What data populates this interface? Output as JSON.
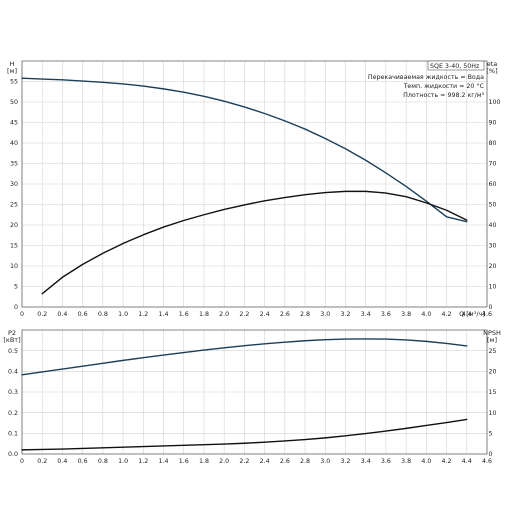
{
  "info": {
    "model": "SQE 3-40, 50Hz",
    "lines": [
      "Перекачиваемая жидкость = Вода",
      "Темп. жидкости = 20 °C",
      "Плотность = 998.2 кг/м³"
    ]
  },
  "chart_data": [
    {
      "type": "line",
      "name": "top",
      "xlabel": "Q [м³/ч]",
      "ylabel": "H [м]",
      "y2label": "eta [%]",
      "xlim": [
        0,
        4.6
      ],
      "ylim": [
        0,
        60
      ],
      "y2lim": [
        0,
        120
      ],
      "x_ticks": [
        "0",
        "0.2",
        "0.4",
        "0.6",
        "0.8",
        "1.0",
        "1.2",
        "1.4",
        "1.6",
        "1.8",
        "2.0",
        "2.2",
        "2.4",
        "2.6",
        "2.8",
        "3.0",
        "3.2",
        "3.4",
        "3.6",
        "3.8",
        "4.0",
        "4.2",
        "4.4",
        "4.6"
      ],
      "y_ticks": [
        0,
        5,
        10,
        15,
        20,
        25,
        30,
        35,
        40,
        45,
        50,
        55
      ],
      "y2_ticks": [
        0,
        10,
        20,
        30,
        40,
        50,
        60,
        70,
        80,
        90,
        100
      ],
      "grid": true,
      "series": [
        {
          "axis": "left",
          "color": "#1b3f5a",
          "x": [
            0.0,
            0.2,
            0.4,
            0.6,
            0.8,
            1.0,
            1.2,
            1.4,
            1.6,
            1.8,
            2.0,
            2.2,
            2.4,
            2.6,
            2.8,
            3.0,
            3.2,
            3.4,
            3.6,
            3.8,
            4.0,
            4.2,
            4.4
          ],
          "values": [
            55.8,
            55.6,
            55.4,
            55.1,
            54.8,
            54.4,
            53.9,
            53.2,
            52.4,
            51.4,
            50.2,
            48.8,
            47.2,
            45.4,
            43.4,
            41.1,
            38.6,
            35.8,
            32.7,
            29.4,
            25.8,
            22.0,
            20.8
          ]
        },
        {
          "axis": "right",
          "color": "#111111",
          "x": [
            0.2,
            0.4,
            0.6,
            0.8,
            1.0,
            1.2,
            1.4,
            1.6,
            1.8,
            2.0,
            2.2,
            2.4,
            2.6,
            2.8,
            3.0,
            3.2,
            3.4,
            3.6,
            3.8,
            4.0,
            4.2,
            4.4
          ],
          "values": [
            6.5,
            14.5,
            20.8,
            26.2,
            31.0,
            35.2,
            39.0,
            42.2,
            45.0,
            47.6,
            49.8,
            51.8,
            53.4,
            54.8,
            55.8,
            56.4,
            56.4,
            55.6,
            53.8,
            50.8,
            47.2,
            42.4
          ]
        }
      ]
    },
    {
      "type": "line",
      "name": "bottom",
      "ylabel": "P2 [кВт]",
      "y2label": "NPSH [м]",
      "xlim": [
        0,
        4.6
      ],
      "ylim": [
        0,
        0.6
      ],
      "y2lim": [
        0,
        30
      ],
      "x_ticks": [
        "0",
        "0.2",
        "0.4",
        "0.6",
        "0.8",
        "1.0",
        "1.2",
        "1.4",
        "1.6",
        "1.8",
        "2.0",
        "2.2",
        "2.4",
        "2.6",
        "2.8",
        "3.0",
        "3.2",
        "3.4",
        "3.6",
        "3.8",
        "4.0",
        "4.2",
        "4.4",
        "4.6"
      ],
      "y_ticks": [
        "0.0",
        "0.1",
        "0.2",
        "0.3",
        "0.4",
        "0.5"
      ],
      "y2_ticks": [
        0,
        5,
        10,
        15,
        20,
        25
      ],
      "grid": true,
      "series": [
        {
          "axis": "left",
          "color": "#1b3f5a",
          "x": [
            0.0,
            0.2,
            0.4,
            0.6,
            0.8,
            1.0,
            1.2,
            1.4,
            1.6,
            1.8,
            2.0,
            2.2,
            2.4,
            2.6,
            2.8,
            3.0,
            3.2,
            3.4,
            3.6,
            3.8,
            4.0,
            4.2,
            4.4
          ],
          "values": [
            0.383,
            0.397,
            0.411,
            0.425,
            0.439,
            0.453,
            0.466,
            0.479,
            0.491,
            0.503,
            0.514,
            0.524,
            0.533,
            0.541,
            0.548,
            0.553,
            0.556,
            0.557,
            0.556,
            0.552,
            0.545,
            0.535,
            0.523
          ]
        },
        {
          "axis": "left",
          "color": "#111111",
          "x": [
            0.0,
            0.2,
            0.4,
            0.6,
            0.8,
            1.0,
            1.2,
            1.4,
            1.6,
            1.8,
            2.0,
            2.2,
            2.4,
            2.6,
            2.8,
            3.0,
            3.2,
            3.4,
            3.6,
            3.8,
            4.0,
            4.2,
            4.4
          ],
          "values": [
            0.02,
            0.022,
            0.024,
            0.027,
            0.03,
            0.033,
            0.036,
            0.039,
            0.042,
            0.045,
            0.048,
            0.052,
            0.057,
            0.063,
            0.07,
            0.078,
            0.088,
            0.099,
            0.111,
            0.124,
            0.138,
            0.152,
            0.167
          ]
        }
      ]
    }
  ]
}
